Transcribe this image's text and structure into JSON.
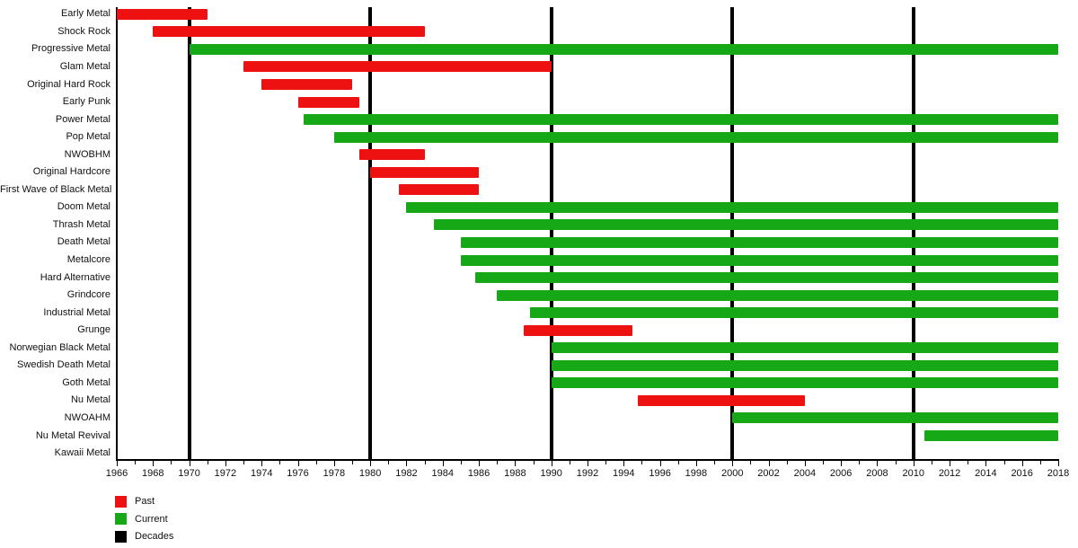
{
  "chart_data": {
    "type": "bar",
    "subtype": "gantt-timeline",
    "title": "",
    "xlabel": "",
    "ylabel": "",
    "x_axis": {
      "min": 1966,
      "max": 2018,
      "label_step": 2,
      "minor_tick_step": 1,
      "tick_labels": [
        "1966",
        "1968",
        "1970",
        "1972",
        "1974",
        "1976",
        "1978",
        "1980",
        "1982",
        "1984",
        "1986",
        "1988",
        "1990",
        "1992",
        "1994",
        "1996",
        "1998",
        "2000",
        "2002",
        "2004",
        "2006",
        "2008",
        "2010",
        "2012",
        "2014",
        "2016",
        "2018"
      ]
    },
    "decade_lines": [
      1970,
      1980,
      1990,
      2000,
      2010
    ],
    "grid": "decade-lines-only",
    "series": [
      {
        "label": "Early Metal",
        "start": 1966,
        "end": 1971,
        "status": "past"
      },
      {
        "label": "Shock Rock",
        "start": 1968,
        "end": 1983,
        "status": "past"
      },
      {
        "label": "Progressive Metal",
        "start": 1970,
        "end": 2018,
        "status": "current"
      },
      {
        "label": "Glam Metal",
        "start": 1973,
        "end": 1990,
        "status": "past"
      },
      {
        "label": "Original Hard Rock",
        "start": 1974,
        "end": 1979,
        "status": "past"
      },
      {
        "label": "Early Punk",
        "start": 1976,
        "end": 1979.4,
        "status": "past"
      },
      {
        "label": "Power Metal",
        "start": 1976.3,
        "end": 2018,
        "status": "current"
      },
      {
        "label": "Pop Metal",
        "start": 1978,
        "end": 2018,
        "status": "current"
      },
      {
        "label": "NWOBHM",
        "start": 1979.4,
        "end": 1983,
        "status": "past"
      },
      {
        "label": "Original Hardcore",
        "start": 1980,
        "end": 1986,
        "status": "past"
      },
      {
        "label": "First Wave of Black Metal",
        "start": 1981.6,
        "end": 1986,
        "status": "past"
      },
      {
        "label": "Doom Metal",
        "start": 1982,
        "end": 2018,
        "status": "current"
      },
      {
        "label": "Thrash Metal",
        "start": 1983.5,
        "end": 2018,
        "status": "current"
      },
      {
        "label": "Death Metal",
        "start": 1985,
        "end": 2018,
        "status": "current"
      },
      {
        "label": "Metalcore",
        "start": 1985,
        "end": 2018,
        "status": "current"
      },
      {
        "label": "Hard Alternative",
        "start": 1985.8,
        "end": 2018,
        "status": "current"
      },
      {
        "label": "Grindcore",
        "start": 1987,
        "end": 2018,
        "status": "current"
      },
      {
        "label": "Industrial Metal",
        "start": 1988.8,
        "end": 2018,
        "status": "current"
      },
      {
        "label": "Grunge",
        "start": 1988.5,
        "end": 1994.5,
        "status": "past"
      },
      {
        "label": "Norwegian Black Metal",
        "start": 1990,
        "end": 2018,
        "status": "current"
      },
      {
        "label": "Swedish Death Metal",
        "start": 1990,
        "end": 2018,
        "status": "current"
      },
      {
        "label": "Goth Metal",
        "start": 1990,
        "end": 2018,
        "status": "current"
      },
      {
        "label": "Nu Metal",
        "start": 1994.8,
        "end": 2004,
        "status": "past"
      },
      {
        "label": "NWOAHM",
        "start": 2000,
        "end": 2018,
        "status": "current"
      },
      {
        "label": "Nu Metal Revival",
        "start": 2010.6,
        "end": 2018,
        "status": "current"
      },
      {
        "label": "Kawaii Metal",
        "start": null,
        "end": null,
        "status": "none"
      }
    ],
    "legend": [
      {
        "label": "Past",
        "color_key": "past"
      },
      {
        "label": "Current",
        "color_key": "current"
      },
      {
        "label": "Decades",
        "color_key": "decades"
      }
    ],
    "legend_position": "bottom-left",
    "colors": {
      "past": "#ee1111",
      "current": "#16a816",
      "decades": "#000000"
    }
  }
}
